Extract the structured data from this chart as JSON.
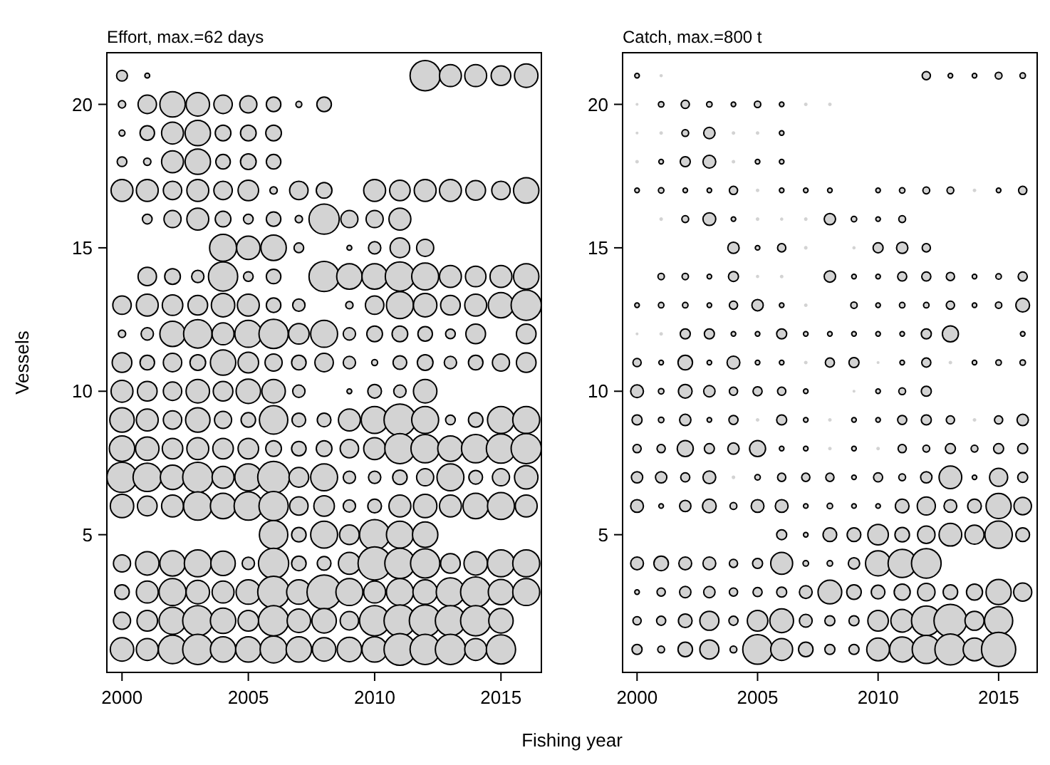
{
  "chart_data": [
    {
      "type": "bubble",
      "title": "Effort, max.=62 days",
      "xlabel": "Fishing year",
      "ylabel": "Vessels",
      "color": "#d3d3d3",
      "xlim": [
        1999.4,
        2016.6
      ],
      "xticks": [
        2000,
        2005,
        2010,
        2015
      ],
      "ylim": [
        0.2,
        21.8
      ],
      "yticks": [
        5,
        10,
        15,
        20
      ],
      "marker": "circle",
      "series": [
        {
          "x": [
            2000,
            2001,
            2012,
            2013,
            2014,
            2015,
            2016
          ],
          "values": [
            21,
            21,
            21,
            21,
            21,
            21,
            21
          ],
          "sizes": [
            0.1,
            0.02,
            0.78,
            0.41,
            0.41,
            0.33,
            0.47
          ]
        },
        {
          "x": [
            2000,
            2001,
            2002,
            2003,
            2004,
            2005,
            2006,
            2007,
            2008
          ],
          "values": [
            20,
            20,
            20,
            20,
            20,
            20,
            20,
            20,
            20
          ],
          "sizes": [
            0.046,
            0.29,
            0.55,
            0.47,
            0.29,
            0.25,
            0.18,
            0.03,
            0.18
          ]
        },
        {
          "x": [
            2000,
            2001,
            2002,
            2003,
            2004,
            2005,
            2006
          ],
          "values": [
            19,
            19,
            19,
            19,
            19,
            19,
            19
          ],
          "sizes": [
            0.03,
            0.18,
            0.41,
            0.55,
            0.21,
            0.21,
            0.21
          ]
        },
        {
          "x": [
            2000,
            2001,
            2002,
            2003,
            2004,
            2005,
            2006
          ],
          "values": [
            18,
            18,
            18,
            18,
            18,
            18,
            18
          ],
          "sizes": [
            0.08,
            0.046,
            0.41,
            0.55,
            0.18,
            0.21,
            0.18
          ]
        },
        {
          "x": [
            2000,
            2001,
            2002,
            2003,
            2004,
            2005,
            2006,
            2007,
            2008,
            2010,
            2011,
            2012,
            2013,
            2014,
            2015,
            2016
          ],
          "values": [
            17,
            17,
            17,
            17,
            17,
            17,
            17,
            17,
            17,
            17,
            17,
            17,
            17,
            17,
            17,
            17
          ],
          "sizes": [
            0.41,
            0.41,
            0.29,
            0.41,
            0.29,
            0.36,
            0.046,
            0.29,
            0.21,
            0.41,
            0.36,
            0.41,
            0.41,
            0.33,
            0.29,
            0.55
          ]
        },
        {
          "x": [
            2001,
            2002,
            2003,
            2004,
            2005,
            2006,
            2007,
            2008,
            2009,
            2010,
            2011
          ],
          "values": [
            16,
            16,
            16,
            16,
            16,
            16,
            16,
            16,
            16,
            16,
            16
          ],
          "sizes": [
            0.08,
            0.25,
            0.41,
            0.21,
            0.08,
            0.18,
            0.046,
            0.78,
            0.25,
            0.25,
            0.41
          ]
        },
        {
          "x": [
            2004,
            2005,
            2006,
            2007,
            2009,
            2010,
            2011,
            2012
          ],
          "values": [
            15,
            15,
            15,
            15,
            15,
            15,
            15,
            15
          ],
          "sizes": [
            0.62,
            0.47,
            0.55,
            0.08,
            0.02,
            0.13,
            0.33,
            0.25
          ]
        },
        {
          "x": [
            2001,
            2002,
            2003,
            2004,
            2005,
            2006,
            2008,
            2009,
            2010,
            2011,
            2012,
            2013,
            2014,
            2015,
            2016
          ],
          "values": [
            14,
            14,
            14,
            14,
            14,
            14,
            14,
            14,
            14,
            14,
            14,
            14,
            14,
            14,
            14
          ],
          "sizes": [
            0.29,
            0.21,
            0.13,
            0.73,
            0.08,
            0.18,
            0.78,
            0.55,
            0.55,
            0.73,
            0.62,
            0.41,
            0.36,
            0.41,
            0.55
          ]
        },
        {
          "x": [
            2000,
            2001,
            2002,
            2003,
            2004,
            2005,
            2006,
            2007,
            2009,
            2010,
            2011,
            2012,
            2013,
            2014,
            2015,
            2016
          ],
          "values": [
            13,
            13,
            13,
            13,
            13,
            13,
            13,
            13,
            13,
            13,
            13,
            13,
            13,
            13,
            13,
            13
          ],
          "sizes": [
            0.29,
            0.41,
            0.36,
            0.33,
            0.47,
            0.41,
            0.18,
            0.13,
            0.046,
            0.29,
            0.62,
            0.47,
            0.33,
            0.41,
            0.55,
            0.78
          ]
        },
        {
          "x": [
            2000,
            2001,
            2002,
            2003,
            2004,
            2005,
            2006,
            2007,
            2008,
            2009,
            2010,
            2011,
            2012,
            2013,
            2014,
            2016
          ],
          "values": [
            12,
            12,
            12,
            12,
            12,
            12,
            12,
            12,
            12,
            12,
            12,
            12,
            12,
            12,
            12,
            12
          ],
          "sizes": [
            0.046,
            0.13,
            0.55,
            0.69,
            0.41,
            0.62,
            0.73,
            0.36,
            0.62,
            0.13,
            0.21,
            0.21,
            0.18,
            0.08,
            0.33,
            0.33
          ]
        },
        {
          "x": [
            2000,
            2001,
            2002,
            2003,
            2004,
            2005,
            2006,
            2007,
            2008,
            2009,
            2010,
            2011,
            2012,
            2013,
            2014,
            2015,
            2016
          ],
          "values": [
            11,
            11,
            11,
            11,
            11,
            11,
            11,
            11,
            11,
            11,
            11,
            11,
            11,
            11,
            11,
            11,
            11
          ],
          "sizes": [
            0.33,
            0.18,
            0.29,
            0.21,
            0.55,
            0.36,
            0.25,
            0.18,
            0.29,
            0.13,
            0.03,
            0.16,
            0.21,
            0.13,
            0.18,
            0.25,
            0.33
          ]
        },
        {
          "x": [
            2000,
            2001,
            2002,
            2003,
            2004,
            2005,
            2006,
            2007,
            2009,
            2010,
            2011,
            2012
          ],
          "values": [
            10,
            10,
            10,
            10,
            10,
            10,
            10,
            10,
            10,
            10,
            10,
            10
          ],
          "sizes": [
            0.41,
            0.33,
            0.29,
            0.47,
            0.33,
            0.51,
            0.47,
            0.13,
            0.02,
            0.16,
            0.13,
            0.47
          ]
        },
        {
          "x": [
            2000,
            2001,
            2002,
            2003,
            2004,
            2005,
            2006,
            2007,
            2008,
            2009,
            2010,
            2011,
            2012,
            2013,
            2014,
            2015,
            2016
          ],
          "values": [
            9,
            9,
            9,
            9,
            9,
            9,
            9,
            9,
            9,
            9,
            9,
            9,
            9,
            9,
            9,
            9,
            9
          ],
          "sizes": [
            0.51,
            0.41,
            0.29,
            0.51,
            0.25,
            0.18,
            0.69,
            0.16,
            0.16,
            0.41,
            0.62,
            0.86,
            0.62,
            0.08,
            0.18,
            0.62,
            0.62
          ]
        },
        {
          "x": [
            2000,
            2001,
            2002,
            2003,
            2004,
            2005,
            2006,
            2007,
            2008,
            2009,
            2010,
            2011,
            2012,
            2013,
            2014,
            2015,
            2016
          ],
          "values": [
            8,
            8,
            8,
            8,
            8,
            8,
            8,
            8,
            8,
            8,
            8,
            8,
            8,
            8,
            8,
            8,
            8
          ],
          "sizes": [
            0.55,
            0.47,
            0.36,
            0.41,
            0.36,
            0.36,
            0.21,
            0.18,
            0.21,
            0.29,
            0.41,
            0.78,
            0.69,
            0.55,
            0.69,
            0.73,
            0.78
          ]
        },
        {
          "x": [
            2000,
            2001,
            2002,
            2003,
            2004,
            2005,
            2006,
            2007,
            2008,
            2009,
            2010,
            2011,
            2012,
            2013,
            2014,
            2015,
            2016
          ],
          "values": [
            7,
            7,
            7,
            7,
            7,
            7,
            7,
            7,
            7,
            7,
            7,
            7,
            7,
            7,
            7,
            7,
            7
          ],
          "sizes": [
            0.78,
            0.69,
            0.51,
            0.78,
            0.41,
            0.62,
            0.86,
            0.33,
            0.62,
            0.13,
            0.13,
            0.18,
            0.25,
            0.62,
            0.16,
            0.25,
            0.47
          ]
        },
        {
          "x": [
            2000,
            2001,
            2002,
            2003,
            2004,
            2005,
            2006,
            2007,
            2008,
            2009,
            2010,
            2011,
            2012,
            2013,
            2014,
            2015,
            2016
          ],
          "values": [
            6,
            6,
            6,
            6,
            6,
            6,
            6,
            6,
            6,
            6,
            6,
            6,
            6,
            6,
            6,
            6,
            6
          ],
          "sizes": [
            0.47,
            0.33,
            0.41,
            0.69,
            0.55,
            0.69,
            0.73,
            0.29,
            0.36,
            0.13,
            0.16,
            0.41,
            0.47,
            0.41,
            0.55,
            0.62,
            0.41
          ]
        },
        {
          "x": [
            2006,
            2007,
            2008,
            2009,
            2010,
            2011,
            2012
          ],
          "values": [
            5,
            5,
            5,
            5,
            5,
            5,
            5
          ],
          "sizes": [
            0.69,
            0.18,
            0.62,
            0.33,
            0.78,
            0.62,
            0.55
          ]
        },
        {
          "x": [
            2000,
            2001,
            2002,
            2003,
            2004,
            2005,
            2006,
            2007,
            2008,
            2009,
            2010,
            2011,
            2012,
            2013,
            2014,
            2015,
            2016
          ],
          "values": [
            4,
            4,
            4,
            4,
            4,
            4,
            4,
            4,
            4,
            4,
            4,
            4,
            4,
            4,
            4,
            4,
            4
          ],
          "sizes": [
            0.25,
            0.47,
            0.55,
            0.62,
            0.51,
            0.13,
            0.78,
            0.18,
            0.16,
            0.41,
            0.94,
            0.78,
            0.73,
            0.33,
            0.47,
            0.62,
            0.62
          ]
        },
        {
          "x": [
            2000,
            2001,
            2002,
            2003,
            2004,
            2005,
            2006,
            2007,
            2008,
            2009,
            2010,
            2011,
            2012,
            2013,
            2014,
            2015,
            2016
          ],
          "values": [
            3,
            3,
            3,
            3,
            3,
            3,
            3,
            3,
            3,
            3,
            3,
            3,
            3,
            3,
            3,
            3,
            3
          ],
          "sizes": [
            0.18,
            0.41,
            0.62,
            0.47,
            0.41,
            0.51,
            0.86,
            0.51,
            1,
            0.62,
            0.41,
            0.62,
            0.51,
            0.69,
            0.78,
            0.55,
            0.62
          ]
        },
        {
          "x": [
            2000,
            2001,
            2002,
            2003,
            2004,
            2005,
            2006,
            2007,
            2008,
            2009,
            2010,
            2011,
            2012,
            2013,
            2014,
            2015
          ],
          "values": [
            2,
            2,
            2,
            2,
            2,
            2,
            2,
            2,
            2,
            2,
            2,
            2,
            2,
            2,
            2,
            2
          ],
          "sizes": [
            0.25,
            0.36,
            0.62,
            0.78,
            0.55,
            0.36,
            0.78,
            0.47,
            0.51,
            0.29,
            0.78,
            0.86,
            0.86,
            0.78,
            0.78,
            0.51
          ]
        },
        {
          "x": [
            2000,
            2001,
            2002,
            2003,
            2004,
            2005,
            2006,
            2007,
            2008,
            2009,
            2010,
            2011,
            2012,
            2013,
            2014,
            2015
          ],
          "values": [
            1,
            1,
            1,
            1,
            1,
            1,
            1,
            1,
            1,
            1,
            1,
            1,
            1,
            1,
            1,
            1
          ],
          "sizes": [
            0.47,
            0.41,
            0.69,
            0.78,
            0.55,
            0.55,
            0.62,
            0.55,
            0.47,
            0.51,
            0.55,
            0.86,
            0.78,
            0.78,
            0.41,
            0.73
          ]
        }
      ]
    },
    {
      "type": "bubble",
      "title": "Catch, max.=800 t",
      "color": "#d3d3d3",
      "xlim": [
        1999.4,
        2016.6
      ],
      "xticks": [
        2000,
        2005,
        2010,
        2015
      ],
      "ylim": [
        0.2,
        21.8
      ],
      "yticks": [
        5,
        10,
        15,
        20
      ],
      "marker": "circle",
      "series": [
        {
          "x": [
            2000,
            2001,
            2012,
            2013,
            2014,
            2015,
            2016
          ],
          "values": [
            21,
            21,
            21,
            21,
            21,
            21,
            21
          ],
          "sizes": [
            0.018,
            0.003,
            0.058,
            0.018,
            0.018,
            0.04,
            0.026
          ]
        },
        {
          "x": [
            2000,
            2001,
            2002,
            2003,
            2004,
            2005,
            2006,
            2007,
            2008
          ],
          "values": [
            20,
            20,
            20,
            20,
            20,
            20,
            20,
            20,
            20
          ],
          "sizes": [
            0.002,
            0.026,
            0.058,
            0.026,
            0.018,
            0.035,
            0.018,
            0.004,
            0.004
          ]
        },
        {
          "x": [
            2000,
            2001,
            2002,
            2003,
            2004,
            2005,
            2006
          ],
          "values": [
            19,
            19,
            19,
            19,
            19,
            19,
            19
          ],
          "sizes": [
            0.002,
            0.004,
            0.04,
            0.11,
            0.004,
            0.004,
            0.018
          ]
        },
        {
          "x": [
            2000,
            2001,
            2002,
            2003,
            2004,
            2005,
            2006
          ],
          "values": [
            18,
            18,
            18,
            18,
            18,
            18,
            18
          ],
          "sizes": [
            0.004,
            0.018,
            0.086,
            0.14,
            0.004,
            0.018,
            0.018
          ]
        },
        {
          "x": [
            2000,
            2001,
            2002,
            2003,
            2004,
            2005,
            2006,
            2007,
            2008,
            2010,
            2011,
            2012,
            2013,
            2014,
            2015,
            2016
          ],
          "values": [
            17,
            17,
            17,
            17,
            17,
            17,
            17,
            17,
            17,
            17,
            17,
            17,
            17,
            17,
            17,
            17
          ],
          "sizes": [
            0.018,
            0.026,
            0.018,
            0.018,
            0.058,
            0.004,
            0.018,
            0.018,
            0.018,
            0.018,
            0.026,
            0.04,
            0.04,
            0.004,
            0.018,
            0.058
          ]
        },
        {
          "x": [
            2001,
            2002,
            2003,
            2004,
            2005,
            2006,
            2007,
            2008,
            2009,
            2010,
            2011
          ],
          "values": [
            16,
            16,
            16,
            16,
            16,
            16,
            16,
            16,
            16,
            16,
            16
          ],
          "sizes": [
            0.004,
            0.04,
            0.14,
            0.018,
            0.004,
            0.003,
            0.004,
            0.11,
            0.026,
            0.018,
            0.04
          ]
        },
        {
          "x": [
            2004,
            2005,
            2006,
            2007,
            2009,
            2010,
            2011,
            2012
          ],
          "values": [
            15,
            15,
            15,
            15,
            15,
            15,
            15,
            15
          ],
          "sizes": [
            0.11,
            0.018,
            0.058,
            0.004,
            0.003,
            0.086,
            0.11,
            0.058
          ]
        },
        {
          "x": [
            2001,
            2002,
            2003,
            2004,
            2005,
            2006,
            2008,
            2009,
            2010,
            2011,
            2012,
            2013,
            2014,
            2015,
            2016
          ],
          "values": [
            14,
            14,
            14,
            14,
            14,
            14,
            14,
            14,
            14,
            14,
            14,
            14,
            14,
            14,
            14
          ],
          "sizes": [
            0.035,
            0.035,
            0.018,
            0.086,
            0.003,
            0.004,
            0.11,
            0.018,
            0.018,
            0.071,
            0.071,
            0.058,
            0.018,
            0.026,
            0.071
          ]
        },
        {
          "x": [
            2000,
            2001,
            2002,
            2003,
            2004,
            2005,
            2006,
            2007,
            2009,
            2010,
            2011,
            2012,
            2013,
            2014,
            2015,
            2016
          ],
          "values": [
            13,
            13,
            13,
            13,
            13,
            13,
            13,
            13,
            13,
            13,
            13,
            13,
            13,
            13,
            13,
            13
          ],
          "sizes": [
            0.018,
            0.026,
            0.026,
            0.018,
            0.058,
            0.11,
            0.018,
            0.004,
            0.035,
            0.018,
            0.026,
            0.026,
            0.058,
            0.018,
            0.035,
            0.16
          ]
        },
        {
          "x": [
            2000,
            2001,
            2002,
            2003,
            2004,
            2005,
            2006,
            2007,
            2008,
            2009,
            2010,
            2011,
            2012,
            2013,
            2016
          ],
          "values": [
            12,
            12,
            12,
            12,
            12,
            12,
            12,
            12,
            12,
            12,
            12,
            12,
            12,
            12,
            12
          ],
          "sizes": [
            0.002,
            0.004,
            0.086,
            0.086,
            0.018,
            0.018,
            0.086,
            0.018,
            0.018,
            0.018,
            0.018,
            0.018,
            0.086,
            0.22,
            0.018
          ]
        },
        {
          "x": [
            2000,
            2001,
            2002,
            2003,
            2004,
            2005,
            2006,
            2007,
            2008,
            2009,
            2010,
            2011,
            2012,
            2013,
            2014,
            2015,
            2016
          ],
          "values": [
            11,
            11,
            11,
            11,
            11,
            11,
            11,
            11,
            11,
            11,
            11,
            11,
            11,
            11,
            11,
            11,
            11
          ],
          "sizes": [
            0.058,
            0.018,
            0.18,
            0.018,
            0.14,
            0.018,
            0.018,
            0.004,
            0.071,
            0.086,
            0.002,
            0.018,
            0.071,
            0.004,
            0.018,
            0.026,
            0.026
          ]
        },
        {
          "x": [
            2000,
            2001,
            2002,
            2003,
            2004,
            2005,
            2006,
            2007,
            2009,
            2010,
            2011,
            2012
          ],
          "values": [
            10,
            10,
            10,
            10,
            10,
            10,
            10,
            10,
            10,
            10,
            10,
            10
          ],
          "sizes": [
            0.14,
            0.026,
            0.16,
            0.11,
            0.058,
            0.071,
            0.058,
            0.018,
            0.002,
            0.018,
            0.04,
            0.086
          ]
        },
        {
          "x": [
            2000,
            2001,
            2002,
            2003,
            2004,
            2005,
            2006,
            2007,
            2008,
            2009,
            2010,
            2011,
            2012,
            2013,
            2014,
            2015,
            2016
          ],
          "values": [
            9,
            9,
            9,
            9,
            9,
            9,
            9,
            9,
            9,
            9,
            9,
            9,
            9,
            9,
            9,
            9,
            9
          ],
          "sizes": [
            0.086,
            0.026,
            0.11,
            0.018,
            0.071,
            0.004,
            0.086,
            0.018,
            0.004,
            0.018,
            0.018,
            0.071,
            0.086,
            0.058,
            0.004,
            0.058,
            0.11
          ]
        },
        {
          "x": [
            2000,
            2001,
            2002,
            2003,
            2004,
            2005,
            2006,
            2007,
            2008,
            2009,
            2010,
            2011,
            2012,
            2013,
            2014,
            2015,
            2016
          ],
          "values": [
            8,
            8,
            8,
            8,
            8,
            8,
            8,
            8,
            8,
            8,
            8,
            8,
            8,
            8,
            8,
            8,
            8
          ],
          "sizes": [
            0.058,
            0.058,
            0.22,
            0.086,
            0.11,
            0.22,
            0.018,
            0.018,
            0.004,
            0.018,
            0.004,
            0.058,
            0.04,
            0.086,
            0.04,
            0.086,
            0.086
          ]
        },
        {
          "x": [
            2000,
            2001,
            2002,
            2003,
            2004,
            2005,
            2006,
            2007,
            2008,
            2009,
            2010,
            2011,
            2012,
            2013,
            2014,
            2015,
            2016
          ],
          "values": [
            7,
            7,
            7,
            7,
            7,
            7,
            7,
            7,
            7,
            7,
            7,
            7,
            7,
            7,
            7,
            7,
            7
          ],
          "sizes": [
            0.11,
            0.11,
            0.071,
            0.14,
            0.004,
            0.026,
            0.058,
            0.058,
            0.058,
            0.018,
            0.071,
            0.04,
            0.11,
            0.44,
            0.018,
            0.28,
            0.086
          ]
        },
        {
          "x": [
            2000,
            2001,
            2002,
            2003,
            2004,
            2005,
            2006,
            2007,
            2008,
            2009,
            2010,
            2011,
            2012,
            2013,
            2014,
            2015,
            2016
          ],
          "values": [
            6,
            6,
            6,
            6,
            6,
            6,
            6,
            6,
            6,
            6,
            6,
            6,
            6,
            6,
            6,
            6,
            6
          ],
          "sizes": [
            0.14,
            0.018,
            0.11,
            0.16,
            0.04,
            0.14,
            0.14,
            0.018,
            0.026,
            0.018,
            0.018,
            0.16,
            0.28,
            0.14,
            0.16,
            0.54,
            0.26
          ]
        },
        {
          "x": [
            2006,
            2007,
            2008,
            2009,
            2010,
            2011,
            2012,
            2013,
            2014,
            2015,
            2016
          ],
          "values": [
            5,
            5,
            5,
            5,
            5,
            5,
            5,
            5,
            5,
            5,
            5
          ],
          "sizes": [
            0.086,
            0.018,
            0.16,
            0.16,
            0.36,
            0.18,
            0.26,
            0.44,
            0.31,
            0.64,
            0.16
          ]
        },
        {
          "x": [
            2000,
            2001,
            2002,
            2003,
            2004,
            2005,
            2006,
            2007,
            2008,
            2009,
            2010,
            2011,
            2012
          ],
          "values": [
            4,
            4,
            4,
            4,
            4,
            4,
            4,
            4,
            4,
            4,
            4,
            4,
            4
          ],
          "sizes": [
            0.14,
            0.18,
            0.14,
            0.14,
            0.058,
            0.086,
            0.41,
            0.026,
            0.026,
            0.11,
            0.54,
            0.68,
            0.75
          ]
        },
        {
          "x": [
            2000,
            2001,
            2002,
            2003,
            2004,
            2005,
            2006,
            2007,
            2008,
            2009,
            2010,
            2011,
            2012,
            2013,
            2014,
            2015,
            2016
          ],
          "values": [
            3,
            3,
            3,
            3,
            3,
            3,
            3,
            3,
            3,
            3,
            3,
            3,
            3,
            3,
            3,
            3,
            3
          ],
          "sizes": [
            0.018,
            0.058,
            0.11,
            0.11,
            0.058,
            0.071,
            0.086,
            0.14,
            0.48,
            0.18,
            0.16,
            0.22,
            0.26,
            0.18,
            0.22,
            0.54,
            0.28
          ]
        },
        {
          "x": [
            2000,
            2001,
            2002,
            2003,
            2004,
            2005,
            2006,
            2007,
            2008,
            2009,
            2010,
            2011,
            2012,
            2013,
            2014,
            2015
          ],
          "values": [
            2,
            2,
            2,
            2,
            2,
            2,
            2,
            2,
            2,
            2,
            2,
            2,
            2,
            2,
            2,
            2
          ],
          "sizes": [
            0.058,
            0.071,
            0.16,
            0.31,
            0.071,
            0.36,
            0.48,
            0.14,
            0.086,
            0.086,
            0.36,
            0.44,
            0.75,
            0.92,
            0.31,
            0.68
          ]
        },
        {
          "x": [
            2000,
            2001,
            2002,
            2003,
            2004,
            2005,
            2006,
            2007,
            2008,
            2009,
            2010,
            2011,
            2012,
            2013,
            2014,
            2015
          ],
          "values": [
            1,
            1,
            1,
            1,
            1,
            1,
            1,
            1,
            1,
            1,
            1,
            1,
            1,
            1,
            1,
            1
          ],
          "sizes": [
            0.086,
            0.04,
            0.18,
            0.31,
            0.04,
            0.75,
            0.41,
            0.18,
            0.086,
            0.086,
            0.44,
            0.54,
            0.68,
            0.82,
            0.44,
            1
          ]
        }
      ]
    }
  ]
}
